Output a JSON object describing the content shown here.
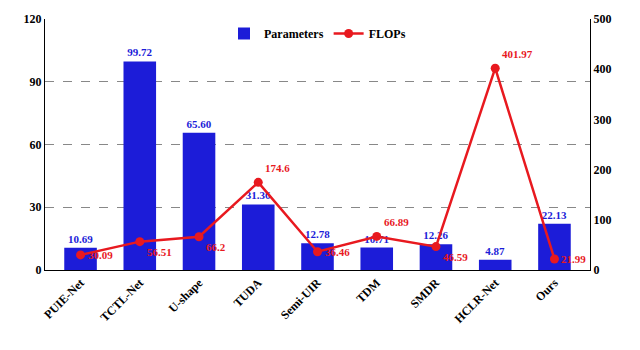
{
  "chart_data": {
    "type": "bar",
    "categories": [
      "PUIE-Net",
      "TCTL-Net",
      "U-shape",
      "TUDA",
      "Semi-UIR",
      "TDM",
      "SMDR",
      "HCLR-Net",
      "Ours"
    ],
    "series": [
      {
        "name": "Parameters",
        "type": "bar",
        "color": "#1c1cd8",
        "values": [
          10.69,
          99.72,
          65.6,
          31.36,
          12.78,
          10.71,
          12.26,
          4.87,
          22.13
        ],
        "value_labels": [
          "10.69",
          "99.72",
          "65.60",
          "31.36",
          "12.78",
          "10.71",
          "12.26",
          "4.87",
          "22.13"
        ]
      },
      {
        "name": "FLOPs",
        "type": "line",
        "axis": "y2",
        "color": "#e8191f",
        "marker": "circle",
        "line_style": "solid",
        "values": [
          30.09,
          56.51,
          66.2,
          174.6,
          36.46,
          66.89,
          46.59,
          401.97,
          21.99
        ]
      }
    ],
    "ylim": [
      0,
      120
    ],
    "yticks": [
      0,
      30,
      60,
      90,
      120
    ],
    "y2lim": [
      0,
      500
    ],
    "y2ticks": [
      0,
      100,
      200,
      300,
      400,
      500
    ],
    "grid": true,
    "legend": "top",
    "data_labels": true
  }
}
